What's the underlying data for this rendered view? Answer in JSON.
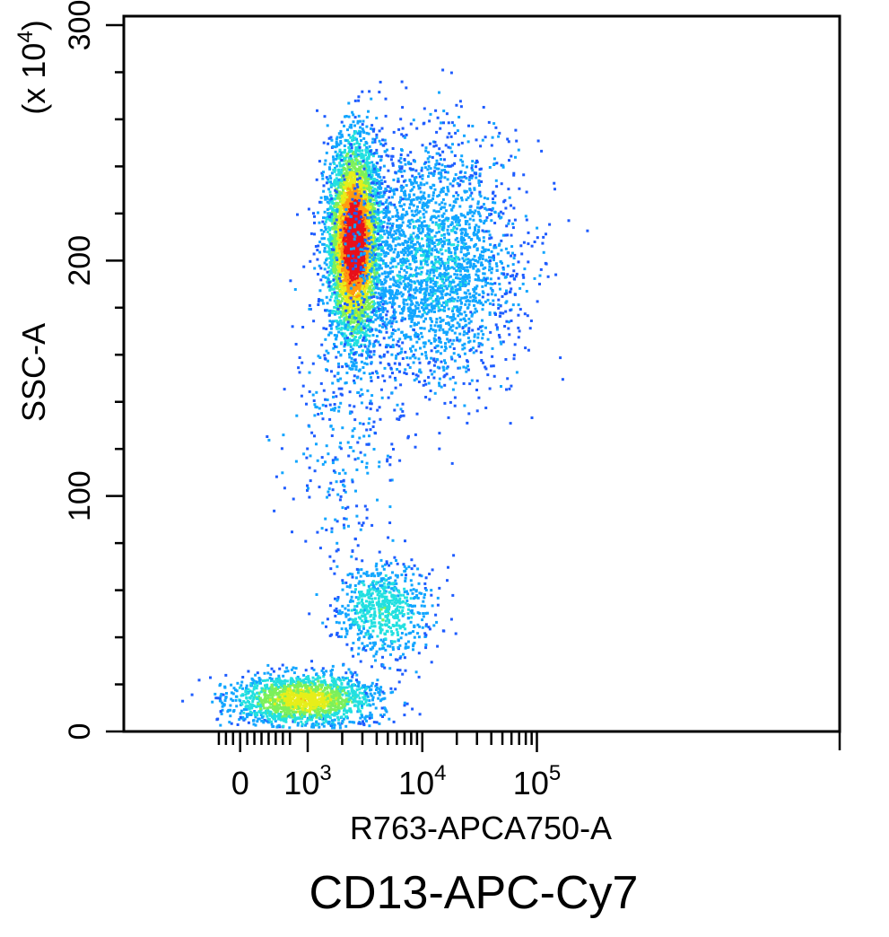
{
  "chart_data": {
    "type": "scatter",
    "style": "flow-cytometry density dot plot (pseudocolor)",
    "title": "CD13-APC-Cy7",
    "xlabel": "R763-APCA750-A",
    "ylabel": "SSC-A",
    "y_unit_label": "(x 10",
    "y_unit_exponent": "4",
    "y_unit_close": ")",
    "x_scale": "biexponential (logicle)",
    "xlim": [
      -300,
      180000
    ],
    "ylim": [
      0,
      300
    ],
    "x_ticks": [
      {
        "value": 0,
        "base": "0",
        "exp": ""
      },
      {
        "value": 1000,
        "base": "10",
        "exp": "3"
      },
      {
        "value": 10000,
        "base": "10",
        "exp": "4"
      },
      {
        "value": 100000,
        "base": "10",
        "exp": "5"
      }
    ],
    "y_ticks": [
      {
        "value": 0,
        "label": "0"
      },
      {
        "value": 100,
        "label": "100"
      },
      {
        "value": 200,
        "label": "200"
      },
      {
        "value": 300,
        "label": "300"
      }
    ],
    "density_colors": [
      "#1e5cff",
      "#12a6ff",
      "#22e0e0",
      "#7cf05a",
      "#e6ee1a",
      "#ff9a10",
      "#e8101a"
    ],
    "populations": [
      {
        "name": "",
        "x_center": 2500,
        "x_spread_decades": 0.16,
        "y_center": 208,
        "y_spread": 30,
        "points": 4200,
        "peak_density": 1.0
      },
      {
        "name": "",
        "x_center": 12000,
        "x_spread_decades": 0.55,
        "y_center": 200,
        "y_spread": 38,
        "points": 2600,
        "peak_density": 0.18
      },
      {
        "name": "",
        "x_center": 900,
        "x_spread_decades": 0.45,
        "y_center": 14,
        "y_spread": 8,
        "points": 1600,
        "peak_density": 0.6
      },
      {
        "name": "",
        "x_center": 4500,
        "x_spread_decades": 0.3,
        "y_center": 52,
        "y_spread": 15,
        "points": 700,
        "peak_density": 0.3
      },
      {
        "name": "",
        "x_center": 2000,
        "x_spread_decades": 0.35,
        "y_center": 130,
        "y_spread": 40,
        "points": 300,
        "peak_density": 0.1
      }
    ],
    "grid": false,
    "legend": "none"
  }
}
